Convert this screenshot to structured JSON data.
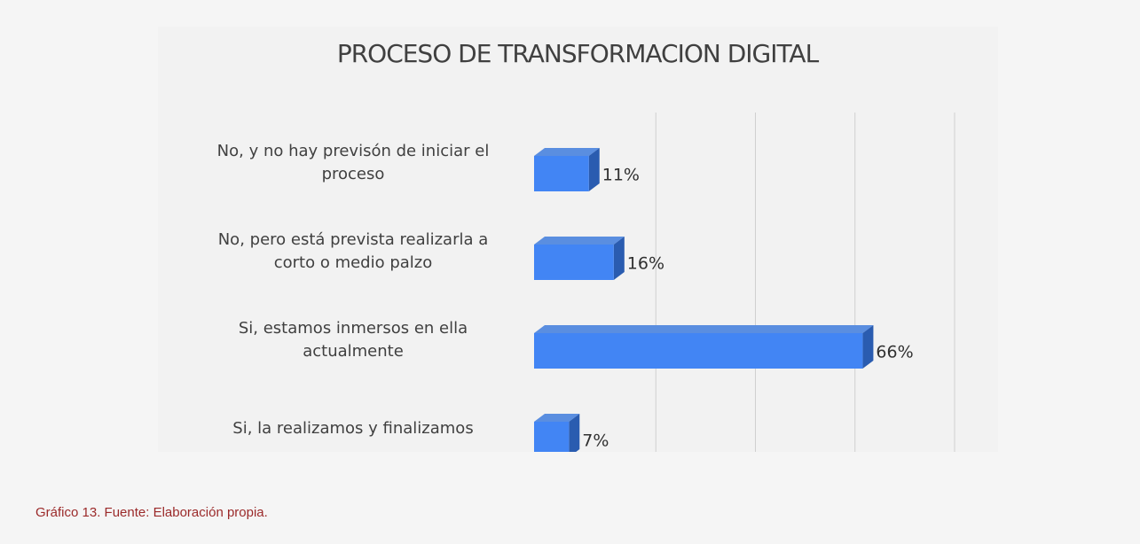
{
  "chart_data": {
    "type": "bar3d_horizontal",
    "title": "PROCESO DE TRANSFORMACION DIGITAL",
    "categories": [
      "No, y no hay previsón de iniciar el proceso",
      "No, pero está prevista realizarla a corto o medio palzo",
      "Si, estamos inmersos en ella actualmente",
      "Si, la realizamos y finalizamos"
    ],
    "values": [
      11,
      16,
      66,
      7
    ],
    "value_labels": [
      "11%",
      "16%",
      "66%",
      "7%"
    ],
    "color": "#4285f4",
    "xlim": [
      0,
      80
    ],
    "xticks": [
      0,
      20,
      40,
      60,
      80
    ],
    "grid": true
  },
  "caption": "Gráfico 13. Fuente: Elaboración propia."
}
